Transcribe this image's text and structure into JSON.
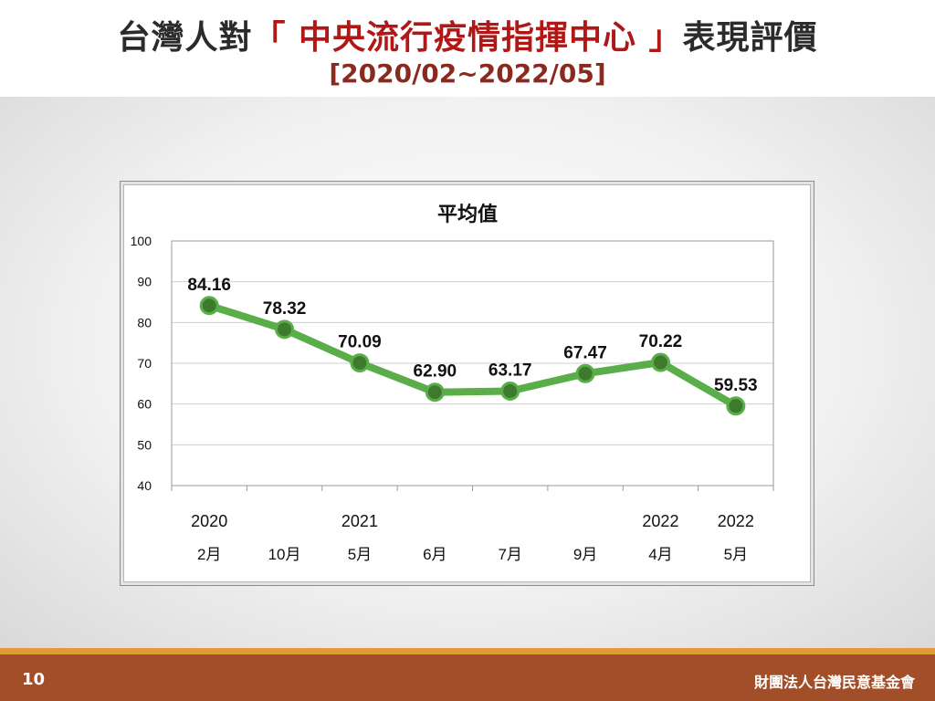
{
  "slide": {
    "title_prefix": "台灣人對",
    "title_highlight": "「 中央流行疫情指揮中心 」",
    "title_suffix": "表現評價",
    "subtitle": "[2020/02~2022/05]",
    "page_number": "10",
    "organization": "財團法人台灣民意基金會"
  },
  "colors": {
    "line": "#5aae4a",
    "marker": "#3d7a2d",
    "grid": "#cfcfcf",
    "title_highlight": "#b01818",
    "footer": "#a24e28",
    "footer_accent": "#e09a3a"
  },
  "chart_data": {
    "type": "line",
    "title": "平均值",
    "categories": [
      {
        "year": "2020",
        "month": "2月"
      },
      {
        "year": "",
        "month": "10月"
      },
      {
        "year": "2021",
        "month": "5月"
      },
      {
        "year": "",
        "month": "6月"
      },
      {
        "year": "",
        "month": "7月"
      },
      {
        "year": "",
        "month": "9月"
      },
      {
        "year": "2022",
        "month": "4月"
      },
      {
        "year": "2022",
        "month": "5月"
      }
    ],
    "values": [
      84.16,
      78.32,
      70.09,
      62.9,
      63.17,
      67.47,
      70.22,
      59.53
    ],
    "value_labels": [
      "84.16",
      "78.32",
      "70.09",
      "62.90",
      "63.17",
      "67.47",
      "70.22",
      "59.53"
    ],
    "ylim": [
      40,
      100
    ],
    "yticks": [
      "40",
      "50",
      "60",
      "70",
      "80",
      "90",
      "100"
    ],
    "grid": true,
    "legend": false
  }
}
